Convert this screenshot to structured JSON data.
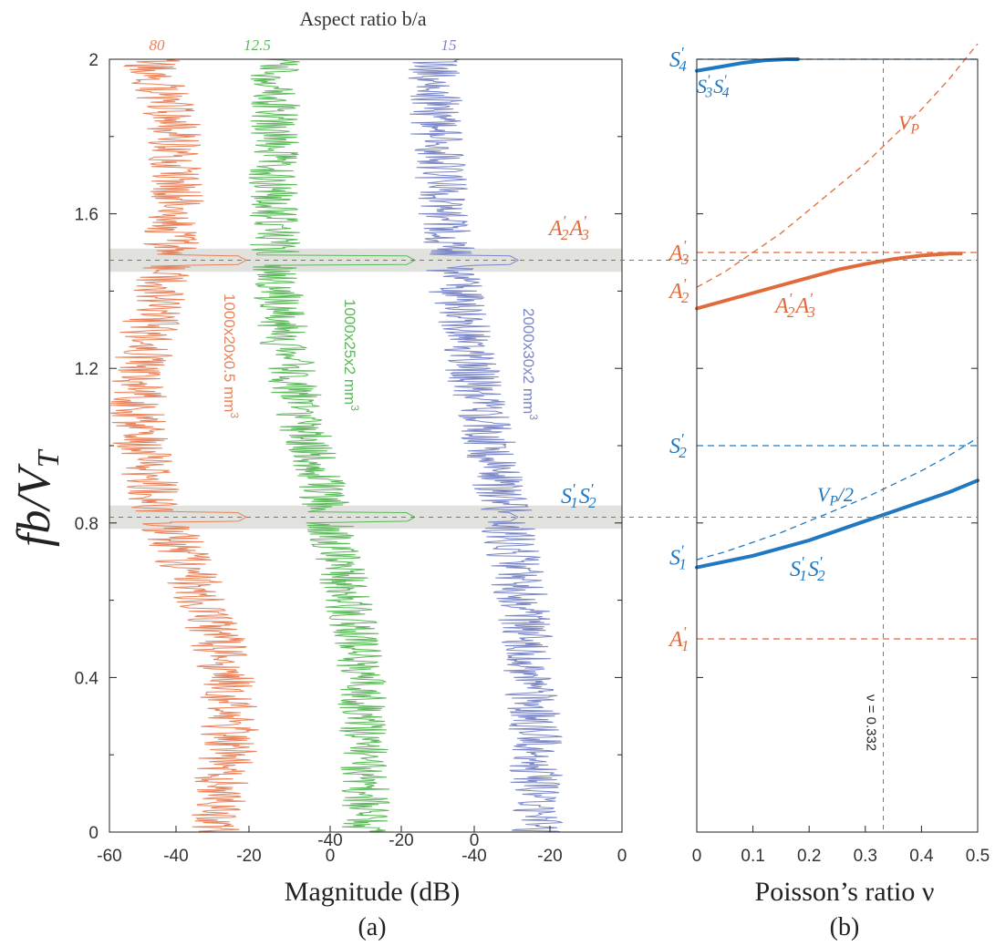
{
  "chart_data": [
    {
      "panel_label": "(a)",
      "type": "line",
      "top_axis_title": "Aspect ratio b/a",
      "xlabel": "Magnitude (dB)",
      "ylabel": "fb/V",
      "ylabel_sub": "T",
      "ylim": [
        0,
        2
      ],
      "y_ticks": [
        "0",
        "0.4",
        "0.8",
        "1.2",
        "1.6",
        "2"
      ],
      "highlight_bands": [
        {
          "center": 0.815,
          "half_width": 0.03,
          "label_main": "S",
          "label_sub_1": "1",
          "label_mid": "S",
          "label_sub_2": "2",
          "label_prime": "'"
        },
        {
          "center": 1.48,
          "half_width": 0.03,
          "label_main": "A",
          "label_sub_1": "2",
          "label_mid": "A",
          "label_sub_2": "3",
          "label_prime": "'"
        }
      ],
      "series": [
        {
          "name": "1000x20x0.5 mm",
          "unit_sup": "3",
          "aspect_ratio": "80",
          "color": "#e8825a",
          "x_ticks": [
            "-60",
            "-40",
            "-20",
            "0"
          ],
          "xlim": [
            -60,
            0
          ],
          "base_db": -38,
          "peak_db": -21
        },
        {
          "name": "1000x25x2 mm",
          "unit_sup": "3",
          "aspect_ratio": "12.5",
          "color": "#5cb85a",
          "x_ticks": [
            "-40",
            "-20",
            "0"
          ],
          "xlim": [
            -40,
            0
          ],
          "base_db": -25,
          "peak_db": -12
        },
        {
          "name": "2000x30x2 mm",
          "unit_sup": "3",
          "aspect_ratio": "15",
          "color": "#7b86c6",
          "x_ticks": [
            "-40",
            "-20",
            "0"
          ],
          "xlim": [
            -40,
            0
          ],
          "base_db": -20,
          "peak_db": -27
        }
      ]
    },
    {
      "panel_label": "(b)",
      "type": "line",
      "xlabel": "Poisson’s ratio ν",
      "xlim": [
        0,
        0.5
      ],
      "ylim": [
        0,
        2
      ],
      "x_ticks": [
        "0",
        "0.1",
        "0.2",
        "0.3",
        "0.4",
        "0.5"
      ],
      "vertical_marker": {
        "x": 0.332,
        "label": "ν = 0.332"
      },
      "series": [
        {
          "name": "S'3S'4",
          "style": "solid",
          "color": "#1f78c1",
          "x": [
            0,
            0.04,
            0.08,
            0.12,
            0.16,
            0.18
          ],
          "y": [
            1.97,
            1.98,
            1.99,
            1.997,
            2.0,
            2.0
          ]
        },
        {
          "name": "V_P",
          "style": "dashed",
          "color": "#e06a3a",
          "x": [
            0,
            0.05,
            0.1,
            0.15,
            0.2,
            0.25,
            0.3,
            0.35,
            0.4,
            0.45,
            0.5
          ],
          "y": [
            1.41,
            1.45,
            1.5,
            1.55,
            1.61,
            1.67,
            1.73,
            1.8,
            1.87,
            1.95,
            2.04
          ]
        },
        {
          "name": "A'2A'3",
          "style": "solid",
          "color": "#e06a3a",
          "x": [
            0,
            0.05,
            0.1,
            0.15,
            0.2,
            0.25,
            0.3,
            0.35,
            0.4,
            0.45,
            0.47
          ],
          "y": [
            1.355,
            1.375,
            1.395,
            1.415,
            1.435,
            1.455,
            1.47,
            1.483,
            1.492,
            1.497,
            1.497
          ]
        },
        {
          "name": "V_P/2",
          "style": "dashed",
          "color": "#1f78c1",
          "x": [
            0,
            0.05,
            0.1,
            0.15,
            0.2,
            0.25,
            0.3,
            0.35,
            0.4,
            0.45,
            0.5
          ],
          "y": [
            0.705,
            0.725,
            0.75,
            0.775,
            0.805,
            0.835,
            0.865,
            0.9,
            0.935,
            0.975,
            1.02
          ]
        },
        {
          "name": "S'1S'2",
          "style": "solid",
          "color": "#1f78c1",
          "x": [
            0,
            0.05,
            0.1,
            0.15,
            0.2,
            0.25,
            0.3,
            0.35,
            0.4,
            0.45,
            0.5
          ],
          "y": [
            0.685,
            0.7,
            0.715,
            0.735,
            0.755,
            0.78,
            0.805,
            0.83,
            0.855,
            0.88,
            0.91
          ]
        }
      ],
      "horizontal_levels": [
        {
          "label": "S",
          "sub": "4",
          "y": 2.0,
          "color": "#1f78c1"
        },
        {
          "label": "A",
          "sub": "3",
          "y": 1.5,
          "color": "#e06a3a"
        },
        {
          "label": "S",
          "sub": "2",
          "y": 1.0,
          "color": "#1f78c1"
        },
        {
          "label": "A",
          "sub": "1",
          "y": 0.5,
          "color": "#e06a3a"
        }
      ],
      "left_labels": [
        {
          "label": "A",
          "sub": "2",
          "y": 1.41,
          "color": "#e06a3a"
        },
        {
          "label": "S",
          "sub": "1",
          "y": 0.72,
          "color": "#1f78c1"
        }
      ],
      "curve_labels": [
        {
          "main": "S",
          "s1": "3",
          "mid": "S",
          "s2": "4",
          "color": "#1f78c1"
        },
        {
          "main": "V",
          "s1": "P",
          "color": "#e06a3a"
        },
        {
          "main": "A",
          "s1": "2",
          "mid": "A",
          "s2": "3",
          "color": "#e06a3a"
        },
        {
          "main": "V",
          "s1": "P",
          "tail": "/2",
          "color": "#1f78c1"
        },
        {
          "main": "S",
          "s1": "1",
          "mid": "S",
          "s2": "2",
          "color": "#1f78c1"
        }
      ]
    }
  ]
}
